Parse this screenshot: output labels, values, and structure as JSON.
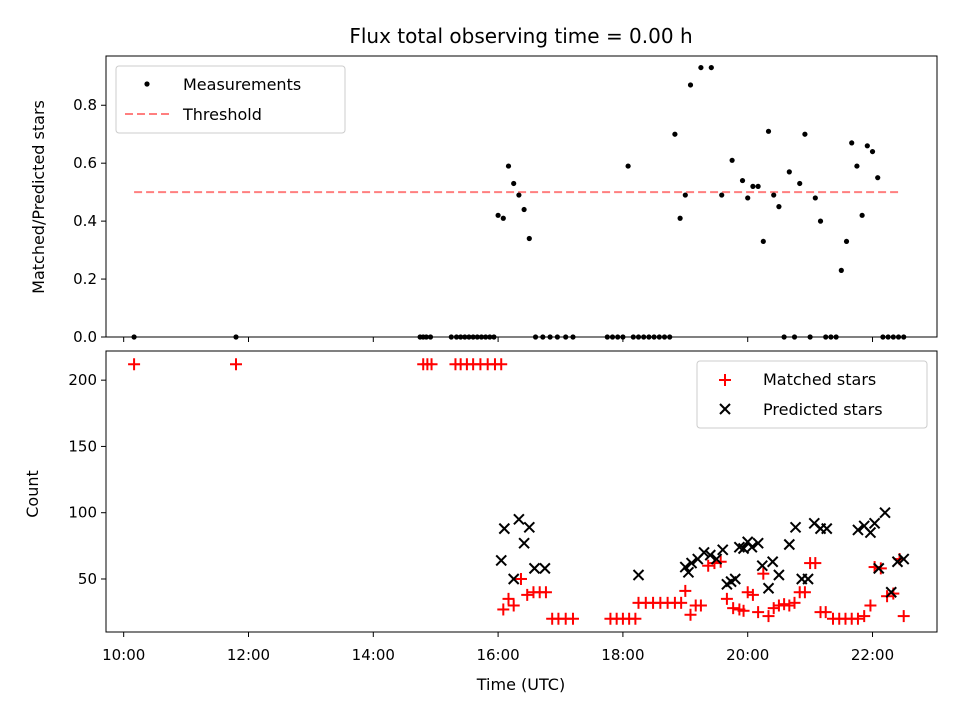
{
  "chart_data": [
    {
      "type": "scatter",
      "title": "Flux total observing time = 0.00 h",
      "ylabel": "Matched/Predicted stars",
      "xlabel": "",
      "xlim": [
        "09:43",
        "23:02"
      ],
      "ylim": [
        0,
        0.97
      ],
      "yticks": [
        0.0,
        0.2,
        0.4,
        0.6,
        0.8
      ],
      "ytick_labels": [
        "0.0",
        "0.2",
        "0.4",
        "0.6",
        "0.8"
      ],
      "legend_position": "upper-left",
      "grid": false,
      "threshold": {
        "name": "Threshold",
        "y": 0.5,
        "x_start": "10:10",
        "x_end": "22:25",
        "color": "#ff7f7f"
      },
      "series": [
        {
          "name": "Measurements",
          "color": "#000000",
          "x": [
            "10:10",
            "11:48",
            "14:45",
            "14:48",
            "14:51",
            "14:55",
            "15:15",
            "15:20",
            "15:24",
            "15:28",
            "15:32",
            "15:36",
            "15:40",
            "15:44",
            "15:48",
            "15:52",
            "15:56",
            "16:00",
            "16:05",
            "16:10",
            "16:15",
            "16:20",
            "16:25",
            "16:30",
            "16:36",
            "16:43",
            "16:50",
            "16:57",
            "17:05",
            "17:12",
            "17:45",
            "17:50",
            "17:55",
            "18:00",
            "18:05",
            "18:10",
            "18:15",
            "18:20",
            "18:25",
            "18:30",
            "18:35",
            "18:40",
            "18:45",
            "18:50",
            "18:55",
            "19:00",
            "19:05",
            "19:15",
            "19:25",
            "19:35",
            "19:45",
            "19:55",
            "20:00",
            "20:05",
            "20:10",
            "20:15",
            "20:20",
            "20:25",
            "20:30",
            "20:35",
            "20:40",
            "20:45",
            "20:50",
            "20:55",
            "21:00",
            "21:05",
            "21:10",
            "21:15",
            "21:20",
            "21:25",
            "21:30",
            "21:35",
            "21:40",
            "21:45",
            "21:50",
            "21:55",
            "22:00",
            "22:05",
            "22:10",
            "22:15",
            "22:20",
            "22:25",
            "22:30"
          ],
          "y": [
            0,
            0,
            0,
            0,
            0,
            0,
            0,
            0,
            0,
            0,
            0,
            0,
            0,
            0,
            0,
            0,
            0,
            0.42,
            0.41,
            0.59,
            0.53,
            0.49,
            0.44,
            0.34,
            0.0,
            0.0,
            0.0,
            0.0,
            0.0,
            0.0,
            0.0,
            0.0,
            0.0,
            0.0,
            0.59,
            0.0,
            0.0,
            0.0,
            0.0,
            0.0,
            0.0,
            0.0,
            0.0,
            0.7,
            0.41,
            0.49,
            0.87,
            0.93,
            0.93,
            0.49,
            0.61,
            0.54,
            0.48,
            0.52,
            0.52,
            0.33,
            0.71,
            0.49,
            0.45,
            0.0,
            0.57,
            0.0,
            0.53,
            0.7,
            0.0,
            0.48,
            0.4,
            0.0,
            0.0,
            0.0,
            0.23,
            0.33,
            0.67,
            0.59,
            0.42,
            0.66,
            0.64,
            0.55,
            0.0,
            0.0,
            0.0,
            0.0,
            0.0
          ]
        }
      ]
    },
    {
      "type": "scatter",
      "title": "",
      "xlabel": "Time (UTC)",
      "ylabel": "Count",
      "xlim": [
        "09:43",
        "23:02"
      ],
      "ylim": [
        10,
        222
      ],
      "xticks": [
        "10:00",
        "12:00",
        "14:00",
        "16:00",
        "18:00",
        "20:00",
        "22:00"
      ],
      "yticks": [
        50,
        100,
        150,
        200
      ],
      "ytick_labels": [
        "50",
        "100",
        "150",
        "200"
      ],
      "legend_position": "upper-right",
      "grid": false,
      "series": [
        {
          "name": "Matched stars",
          "marker": "plus",
          "color": "#ff0000",
          "x": [
            "10:10",
            "11:48",
            "14:48",
            "14:52",
            "14:56",
            "15:19",
            "15:24",
            "15:30",
            "15:36",
            "15:43",
            "15:50",
            "15:57",
            "16:03",
            "16:05",
            "16:10",
            "16:15",
            "16:22",
            "16:28",
            "16:34",
            "16:40",
            "16:46",
            "16:52",
            "16:58",
            "17:05",
            "17:12",
            "17:48",
            "17:54",
            "18:00",
            "18:06",
            "18:12",
            "18:15",
            "18:22",
            "18:29",
            "18:36",
            "18:43",
            "18:50",
            "18:56",
            "19:00",
            "19:05",
            "19:10",
            "19:15",
            "19:22",
            "19:28",
            "19:34",
            "19:40",
            "19:46",
            "19:52",
            "19:56",
            "20:00",
            "20:05",
            "20:10",
            "20:15",
            "20:20",
            "20:25",
            "20:30",
            "20:35",
            "20:40",
            "20:45",
            "20:50",
            "20:55",
            "21:00",
            "21:05",
            "21:10",
            "21:15",
            "21:22",
            "21:28",
            "21:34",
            "21:40",
            "21:46",
            "21:52",
            "21:58",
            "22:02",
            "22:08",
            "22:14",
            "22:20",
            "22:26",
            "22:30"
          ],
          "y": [
            212,
            212,
            212,
            212,
            212,
            212,
            212,
            212,
            212,
            212,
            212,
            212,
            212,
            27,
            35,
            30,
            50,
            38,
            40,
            40,
            40,
            20,
            20,
            20,
            20,
            20,
            20,
            20,
            20,
            20,
            32,
            32,
            32,
            32,
            32,
            32,
            32,
            41,
            23,
            30,
            30,
            60,
            62,
            63,
            35,
            28,
            27,
            26,
            40,
            38,
            25,
            54,
            22,
            28,
            30,
            31,
            30,
            32,
            40,
            40,
            62,
            62,
            25,
            25,
            20,
            20,
            20,
            20,
            20,
            22,
            30,
            59,
            58,
            37,
            39,
            65,
            22
          ]
        },
        {
          "name": "Predicted stars",
          "marker": "x",
          "color": "#000000",
          "x": [
            "16:03",
            "16:06",
            "16:15",
            "16:20",
            "16:25",
            "16:30",
            "16:35",
            "16:45",
            "18:15",
            "19:00",
            "19:03",
            "19:06",
            "19:12",
            "19:18",
            "19:24",
            "19:30",
            "19:36",
            "19:40",
            "19:44",
            "19:48",
            "19:52",
            "19:56",
            "20:00",
            "20:04",
            "20:10",
            "20:14",
            "20:20",
            "20:24",
            "20:30",
            "20:40",
            "20:46",
            "20:52",
            "20:58",
            "21:04",
            "21:10",
            "21:16",
            "21:46",
            "21:52",
            "21:58",
            "22:02",
            "22:06",
            "22:12",
            "22:18",
            "22:24",
            "22:30"
          ],
          "y": [
            64,
            88,
            50,
            95,
            77,
            89,
            58,
            58,
            53,
            59,
            55,
            62,
            65,
            70,
            68,
            65,
            72,
            46,
            48,
            50,
            74,
            73,
            78,
            74,
            77,
            60,
            43,
            63,
            53,
            76,
            89,
            50,
            50,
            92,
            88,
            88,
            87,
            90,
            85,
            92,
            58,
            100,
            40,
            63,
            65
          ]
        }
      ]
    }
  ]
}
